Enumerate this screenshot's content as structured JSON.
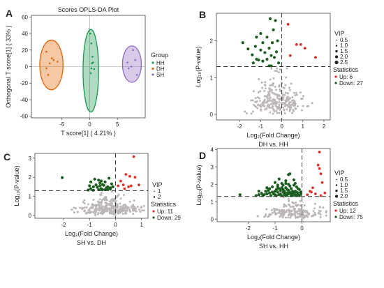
{
  "panels": [
    {
      "letter": "A"
    },
    {
      "letter": "B"
    },
    {
      "letter": "C"
    },
    {
      "letter": "D"
    }
  ],
  "colors": {
    "HH": "#1a9850",
    "DH": "#e66101",
    "SH": "#8e6bbf",
    "up": "#d73027",
    "down": "#1b5e20",
    "ns": "#bdb6b6"
  },
  "chart_data": [
    {
      "panel": "A",
      "type": "scatter",
      "title": "Scores OPLS-DA Plot",
      "xlabel": "T score[1] ( 4.21% )",
      "ylabel": "Orthogonal T score[1] ( 33% )",
      "xlim": [
        -10.5,
        10
      ],
      "ylim": [
        -62,
        62
      ],
      "xticks": [
        -5,
        0,
        5
      ],
      "yticks": [
        -60,
        -40,
        -20,
        0,
        20,
        40,
        60
      ],
      "legend": {
        "title": "Group",
        "entries": [
          "HH",
          "DH",
          "SH"
        ]
      },
      "series": [
        {
          "name": "HH",
          "color": "#1a9850",
          "points": [
            [
              0.1,
              40
            ],
            [
              0.3,
              28
            ],
            [
              0.5,
              12
            ],
            [
              0.4,
              4
            ],
            [
              0.8,
              -3
            ],
            [
              0.2,
              -8
            ],
            [
              0.6,
              5
            ],
            [
              0.3,
              -2
            ]
          ],
          "ellipse": {
            "cx": 0.2,
            "cy": -5,
            "rx": 1.4,
            "ry": 50
          }
        },
        {
          "name": "DH",
          "color": "#e66101",
          "points": [
            [
              -7.8,
              18
            ],
            [
              -6.8,
              10
            ],
            [
              -7.2,
              4
            ],
            [
              -7.8,
              -2
            ],
            [
              -6.5,
              8
            ],
            [
              -5.8,
              6
            ],
            [
              -7.5,
              -10
            ]
          ],
          "ellipse": {
            "cx": -6.9,
            "cy": 2,
            "rx": 2.1,
            "ry": 30
          }
        },
        {
          "name": "SH",
          "color": "#8e6bbf",
          "points": [
            [
              7.8,
              20
            ],
            [
              8.2,
              8
            ],
            [
              6.8,
              5
            ],
            [
              7.0,
              -2
            ],
            [
              8.5,
              -10
            ],
            [
              7.5,
              0
            ]
          ],
          "ellipse": {
            "cx": 7.6,
            "cy": 3,
            "rx": 1.7,
            "ry": 22
          }
        }
      ]
    },
    {
      "panel": "B",
      "type": "scatter",
      "subtitle": "DH vs. HH",
      "xlabel": "Log₂(Fold Change)",
      "ylabel": "Log₁₀(P-value)",
      "xlim": [
        -3.1,
        2.3
      ],
      "ylim": [
        -0.15,
        2.75
      ],
      "xticks": [
        -2,
        -1,
        0,
        1,
        2
      ],
      "yticks": [
        0,
        1,
        2
      ],
      "threshold_x": 0,
      "threshold_y": 1.3,
      "vip_legend": {
        "title": "VIP",
        "values": [
          "0.5",
          "1.0",
          "1.5",
          "2.0",
          "2.5"
        ]
      },
      "stats_legend": {
        "title": "Statistics",
        "entries": [
          {
            "label": "Up: 6",
            "kind": "up"
          },
          {
            "label": "Down: 27",
            "kind": "down"
          }
        ]
      },
      "up": [
        [
          0.3,
          2.45
        ],
        [
          0.4,
          1.6
        ],
        [
          0.7,
          1.9
        ],
        [
          0.9,
          1.9
        ],
        [
          1.1,
          1.8
        ],
        [
          1.6,
          1.55
        ]
      ],
      "down": [
        [
          -1.85,
          1.95
        ],
        [
          -1.6,
          1.78
        ],
        [
          -1.4,
          1.62
        ],
        [
          -1.2,
          1.5
        ],
        [
          -1.1,
          1.48
        ],
        [
          -0.9,
          1.45
        ],
        [
          -0.6,
          1.32
        ],
        [
          -0.5,
          1.32
        ],
        [
          -0.15,
          1.4
        ],
        [
          -0.8,
          1.68
        ],
        [
          -0.6,
          1.8
        ],
        [
          -0.7,
          2.1
        ],
        [
          -1.0,
          2.2
        ],
        [
          -1.2,
          2.1
        ],
        [
          -0.4,
          2.3
        ],
        [
          -0.3,
          2.55
        ],
        [
          -0.55,
          2.6
        ],
        [
          -1.25,
          1.85
        ],
        [
          -1.0,
          1.75
        ],
        [
          -0.45,
          1.95
        ],
        [
          -0.2,
          2.0
        ],
        [
          -0.35,
          1.55
        ],
        [
          -0.25,
          1.7
        ],
        [
          -0.7,
          1.5
        ],
        [
          -1.35,
          1.4
        ],
        [
          -0.5,
          1.6
        ],
        [
          -0.9,
          1.95
        ]
      ],
      "ns_seed": 11,
      "ns_count": 260,
      "ns_mx": -0.2,
      "ns_sx": 0.6,
      "ns_ymax": 1.25
    },
    {
      "panel": "C",
      "type": "scatter",
      "subtitle": "SH vs. DH",
      "xlabel": "Log₂(Fold Change)",
      "ylabel": "Log₁₀(P-value)",
      "xlim": [
        -3.1,
        1.25
      ],
      "ylim": [
        -0.15,
        3.25
      ],
      "xticks": [
        -2,
        -1,
        0,
        1
      ],
      "yticks": [
        0,
        1,
        2,
        3
      ],
      "threshold_x": 0,
      "threshold_y": 1.3,
      "vip_legend": {
        "title": "VIP",
        "values": [
          "1",
          "2"
        ]
      },
      "stats_legend": {
        "title": "Statistics",
        "entries": [
          {
            "label": "Up: 11",
            "kind": "up"
          },
          {
            "label": "Down: 29",
            "kind": "down"
          }
        ]
      },
      "up": [
        [
          0.7,
          3.08
        ],
        [
          0.4,
          2.15
        ],
        [
          0.55,
          2.05
        ],
        [
          0.75,
          2.0
        ],
        [
          0.2,
          1.8
        ],
        [
          0.3,
          1.6
        ],
        [
          0.6,
          1.55
        ],
        [
          0.5,
          1.5
        ],
        [
          0.1,
          1.55
        ],
        [
          0.9,
          1.6
        ],
        [
          0.35,
          1.4
        ]
      ],
      "down": [
        [
          -2.05,
          1.98
        ],
        [
          -0.95,
          1.75
        ],
        [
          -0.8,
          1.9
        ],
        [
          -0.65,
          1.85
        ],
        [
          -0.55,
          1.8
        ],
        [
          -0.5,
          1.62
        ],
        [
          -0.45,
          1.58
        ],
        [
          -0.6,
          1.55
        ],
        [
          -0.3,
          1.5
        ],
        [
          -0.35,
          1.45
        ],
        [
          -0.2,
          1.45
        ],
        [
          -0.7,
          1.48
        ],
        [
          -0.85,
          1.5
        ],
        [
          -0.25,
          1.95
        ],
        [
          -0.4,
          1.75
        ],
        [
          -0.15,
          1.65
        ],
        [
          -1.0,
          1.55
        ],
        [
          -0.95,
          1.4
        ],
        [
          -0.75,
          1.6
        ],
        [
          -0.55,
          1.4
        ],
        [
          -0.3,
          1.38
        ],
        [
          -0.65,
          1.35
        ],
        [
          -0.4,
          1.35
        ],
        [
          -0.2,
          1.38
        ],
        [
          -0.85,
          1.32
        ],
        [
          -0.5,
          1.35
        ],
        [
          -1.05,
          1.33
        ],
        [
          -0.1,
          1.5
        ],
        [
          -0.6,
          1.7
        ]
      ],
      "ns_seed": 23,
      "ns_count": 300,
      "ns_mx": -0.2,
      "ns_sx": 0.55,
      "ns_ymax": 1.25
    },
    {
      "panel": "D",
      "type": "scatter",
      "subtitle": "SH vs. HH",
      "xlabel": "Log₂(Fold Change)",
      "ylabel": "Log₁₀(P-value)",
      "xlim": [
        -3.15,
        1.05
      ],
      "ylim": [
        -0.15,
        4.05
      ],
      "xticks": [
        -2,
        -1,
        0
      ],
      "yticks": [
        0,
        1,
        2,
        3,
        4
      ],
      "threshold_x": 0,
      "threshold_y": 1.3,
      "vip_legend": {
        "title": "VIP",
        "values": [
          "0.5",
          "1.0",
          "1.5",
          "2.0"
        ]
      },
      "stats_legend": {
        "title": "Statistics",
        "entries": [
          {
            "label": "Up: 12",
            "kind": "up"
          },
          {
            "label": "Down: 75",
            "kind": "down"
          }
        ]
      },
      "up": [
        [
          0.65,
          3.85
        ],
        [
          0.65,
          2.9
        ],
        [
          0.7,
          2.6
        ],
        [
          0.75,
          2.1
        ],
        [
          0.6,
          3.1
        ],
        [
          0.35,
          1.55
        ],
        [
          0.5,
          1.45
        ],
        [
          0.2,
          1.4
        ],
        [
          0.85,
          1.5
        ],
        [
          0.4,
          1.8
        ],
        [
          0.7,
          1.35
        ],
        [
          0.3,
          1.6
        ]
      ],
      "down": [
        [
          -0.45,
          2.6
        ],
        [
          -0.5,
          2.55
        ],
        [
          -0.6,
          2.2
        ],
        [
          -0.75,
          2.05
        ],
        [
          -0.5,
          2.0
        ],
        [
          -0.9,
          1.95
        ],
        [
          -1.0,
          2.1
        ],
        [
          -1.1,
          1.85
        ],
        [
          -1.3,
          1.8
        ],
        [
          -1.35,
          1.6
        ],
        [
          -1.5,
          1.48
        ],
        [
          -1.6,
          1.6
        ],
        [
          -1.2,
          1.5
        ],
        [
          -2.3,
          1.4
        ],
        [
          -1.7,
          1.35
        ],
        [
          -0.3,
          1.95
        ],
        [
          -0.2,
          1.85
        ],
        [
          -0.1,
          1.7
        ],
        [
          -0.15,
          1.5
        ],
        [
          -0.35,
          1.45
        ],
        [
          -0.55,
          1.5
        ],
        [
          -0.7,
          1.55
        ],
        [
          -0.8,
          1.65
        ],
        [
          -0.95,
          1.7
        ],
        [
          -0.85,
          1.4
        ],
        [
          -0.65,
          1.4
        ],
        [
          -0.4,
          1.35
        ],
        [
          -0.25,
          1.4
        ],
        [
          -1.05,
          1.45
        ],
        [
          -1.15,
          1.35
        ],
        [
          -0.3,
          2.25
        ],
        [
          -0.85,
          2.3
        ],
        [
          -0.6,
          1.8
        ],
        [
          -0.4,
          1.75
        ],
        [
          -0.25,
          1.6
        ],
        [
          -0.05,
          1.55
        ],
        [
          -0.75,
          1.8
        ],
        [
          -1.25,
          1.65
        ],
        [
          -0.5,
          1.65
        ],
        [
          -0.9,
          1.55
        ],
        [
          -1.4,
          1.4
        ],
        [
          -0.6,
          1.35
        ],
        [
          -0.2,
          1.35
        ],
        [
          -0.45,
          1.9
        ],
        [
          -0.7,
          1.95
        ],
        [
          -1.0,
          1.6
        ],
        [
          -0.35,
          1.6
        ],
        [
          -0.15,
          1.75
        ],
        [
          -0.55,
          1.4
        ],
        [
          -0.95,
          1.35
        ],
        [
          -0.1,
          1.35
        ],
        [
          -1.6,
          1.4
        ],
        [
          -0.8,
          1.45
        ],
        [
          -0.3,
          1.5
        ],
        [
          -0.65,
          1.6
        ],
        [
          -1.2,
          1.75
        ],
        [
          -0.45,
          1.55
        ],
        [
          -0.05,
          1.4
        ],
        [
          -0.75,
          1.35
        ],
        [
          -1.1,
          1.55
        ],
        [
          -0.25,
          2.05
        ],
        [
          -0.6,
          2.05
        ],
        [
          -0.9,
          1.85
        ],
        [
          -0.4,
          1.45
        ],
        [
          -0.15,
          1.4
        ],
        [
          -1.3,
          1.45
        ],
        [
          -0.5,
          1.45
        ],
        [
          -0.85,
          1.75
        ],
        [
          -0.35,
          1.35
        ],
        [
          -0.7,
          1.7
        ],
        [
          -1.0,
          1.4
        ],
        [
          -0.2,
          1.55
        ],
        [
          -0.55,
          1.7
        ],
        [
          -1.45,
          1.35
        ],
        [
          -0.65,
          1.5
        ]
      ],
      "ns_seed": 37,
      "ns_count": 360,
      "ns_mx": -0.25,
      "ns_sx": 0.55,
      "ns_ymax": 1.25
    }
  ]
}
